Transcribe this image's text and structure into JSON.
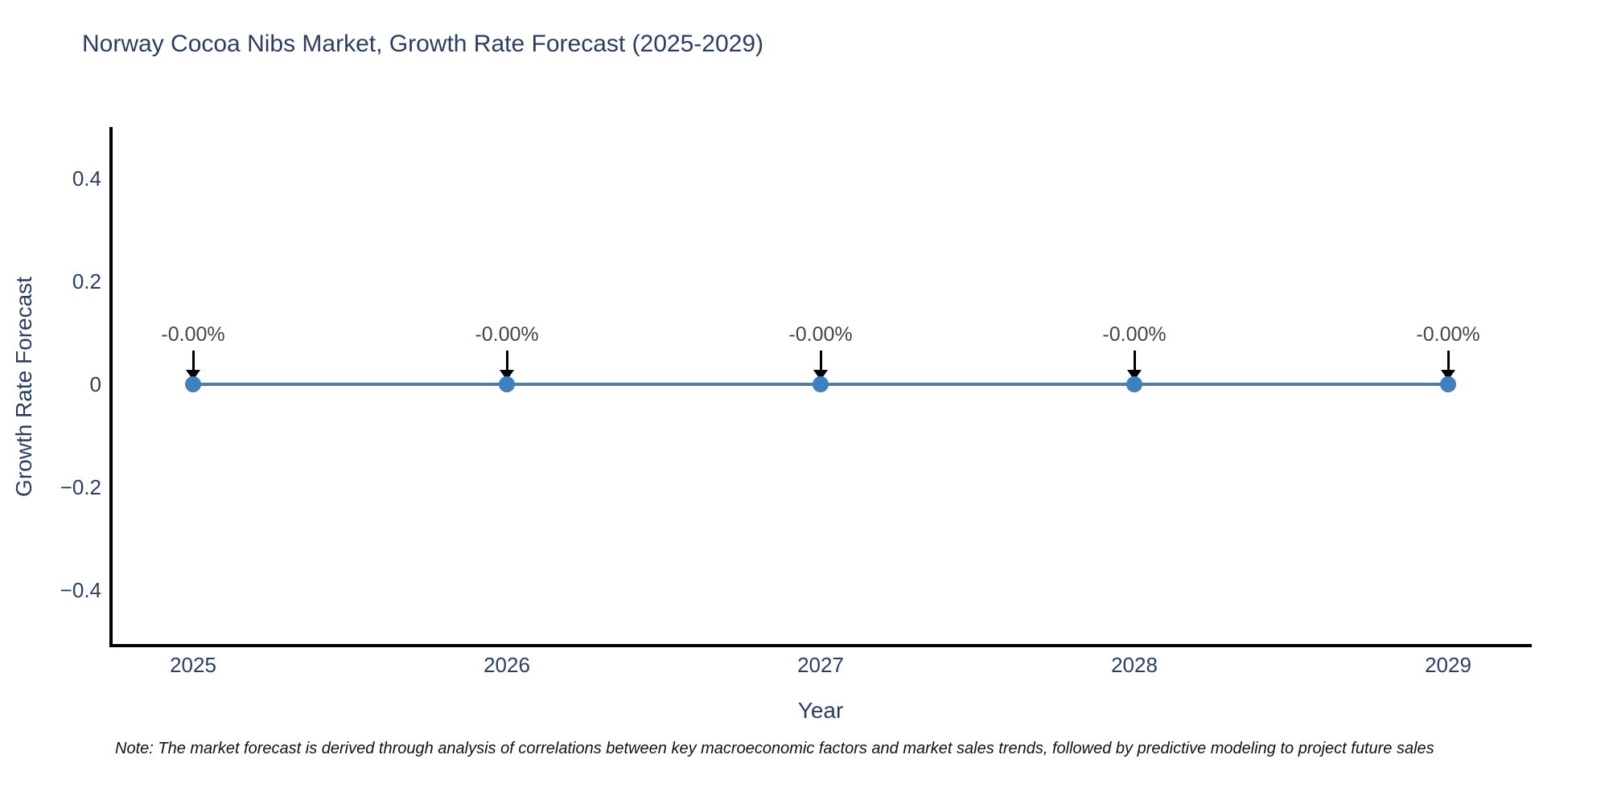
{
  "chart_data": {
    "type": "line",
    "title": "Norway Cocoa Nibs Market, Growth Rate Forecast (2025-2029)",
    "xlabel": "Year",
    "ylabel": "Growth Rate Forecast",
    "x": [
      2025,
      2026,
      2027,
      2028,
      2029
    ],
    "y": [
      0,
      0,
      0,
      0,
      0
    ],
    "point_labels": [
      "-0.00%",
      "-0.00%",
      "-0.00%",
      "-0.00%",
      "-0.00%"
    ],
    "x_tick_labels": [
      "2025",
      "2026",
      "2027",
      "2028",
      "2029"
    ],
    "y_tick_labels": [
      "0.4",
      "0.2",
      "0",
      "−0.2",
      "−0.4"
    ],
    "y_tick_values": [
      0.4,
      0.2,
      0,
      -0.2,
      -0.4
    ],
    "ylim": [
      -0.5,
      0.5
    ],
    "grid": false,
    "legend": "none",
    "colors": {
      "line": "#4f7da8",
      "marker": "#3f80bf",
      "annotation_arrow": "#000000",
      "annotation_text": "#444444",
      "axis_line": "#000000",
      "text": "#2a3f5f"
    }
  },
  "note": "Note: The market forecast is derived through analysis of correlations between key macroeconomic factors and market sales trends, followed by predictive modeling to project future sales"
}
